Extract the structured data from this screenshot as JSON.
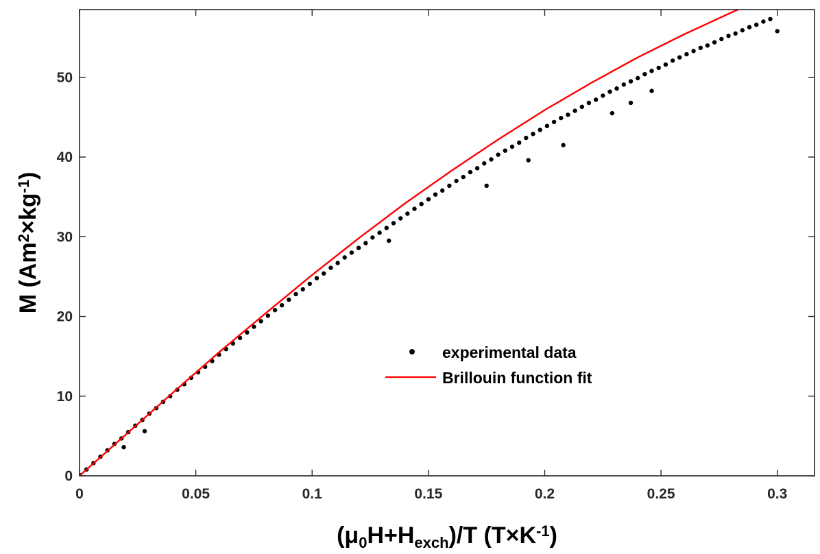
{
  "chart_data": {
    "type": "scatter",
    "title": "",
    "xlabel": {
      "parts": [
        {
          "text": "(μ",
          "style": "normal"
        },
        {
          "text": "0",
          "style": "sub"
        },
        {
          "text": "H+H",
          "style": "normal"
        },
        {
          "text": "exch",
          "style": "sub"
        },
        {
          "text": ")/T (T×K",
          "style": "normal"
        },
        {
          "text": "-1",
          "style": "sup"
        },
        {
          "text": ")",
          "style": "normal"
        }
      ]
    },
    "ylabel": {
      "parts": [
        {
          "text": "M (Am",
          "style": "normal"
        },
        {
          "text": "2",
          "style": "sup"
        },
        {
          "text": "×kg",
          "style": "normal"
        },
        {
          "text": "-1",
          "style": "sup"
        },
        {
          "text": ")",
          "style": "normal"
        }
      ]
    },
    "xlim": [
      0,
      0.316
    ],
    "ylim": [
      0,
      58.5
    ],
    "xticks": [
      0,
      0.05,
      0.1,
      0.15,
      0.2,
      0.25,
      0.3
    ],
    "xtick_labels": [
      "0",
      "0.05",
      "0.1",
      "0.15",
      "0.2",
      "0.25",
      "0.3"
    ],
    "yticks": [
      0,
      10,
      20,
      30,
      40,
      50
    ],
    "ytick_labels": [
      "0",
      "10",
      "20",
      "30",
      "40",
      "50"
    ],
    "grid": false,
    "legend_position": "center-right",
    "series": [
      {
        "name": "experimental data",
        "kind": "scatter",
        "color": "#000000",
        "x": [
          0.0,
          0.003,
          0.006,
          0.009,
          0.012,
          0.015,
          0.018,
          0.021,
          0.024,
          0.027,
          0.03,
          0.033,
          0.036,
          0.039,
          0.042,
          0.045,
          0.048,
          0.051,
          0.054,
          0.057,
          0.06,
          0.063,
          0.066,
          0.069,
          0.072,
          0.075,
          0.078,
          0.081,
          0.084,
          0.087,
          0.09,
          0.093,
          0.096,
          0.099,
          0.102,
          0.105,
          0.108,
          0.111,
          0.114,
          0.117,
          0.12,
          0.123,
          0.126,
          0.129,
          0.132,
          0.135,
          0.138,
          0.141,
          0.144,
          0.147,
          0.15,
          0.153,
          0.156,
          0.159,
          0.162,
          0.165,
          0.168,
          0.171,
          0.174,
          0.177,
          0.18,
          0.183,
          0.186,
          0.189,
          0.192,
          0.195,
          0.198,
          0.201,
          0.204,
          0.207,
          0.21,
          0.213,
          0.216,
          0.219,
          0.222,
          0.225,
          0.228,
          0.231,
          0.234,
          0.237,
          0.24,
          0.243,
          0.246,
          0.249,
          0.252,
          0.255,
          0.258,
          0.261,
          0.264,
          0.267,
          0.27,
          0.273,
          0.276,
          0.279,
          0.282,
          0.285,
          0.288,
          0.291,
          0.294,
          0.297,
          0.3,
          0.028,
          0.019,
          0.193,
          0.208,
          0.229,
          0.175,
          0.133,
          0.237,
          0.246
        ],
        "y": [
          0.1,
          0.8,
          1.6,
          2.4,
          3.2,
          4.0,
          4.7,
          5.5,
          6.3,
          7.0,
          7.8,
          8.5,
          9.3,
          10.0,
          10.8,
          11.5,
          12.3,
          13.0,
          13.7,
          14.4,
          15.2,
          15.9,
          16.6,
          17.3,
          18.0,
          18.7,
          19.4,
          20.1,
          20.8,
          21.4,
          22.1,
          22.8,
          23.4,
          24.1,
          24.8,
          25.4,
          26.1,
          26.7,
          27.4,
          28.0,
          28.6,
          29.2,
          29.9,
          30.5,
          31.1,
          31.7,
          32.3,
          32.9,
          33.5,
          34.1,
          34.7,
          35.3,
          35.8,
          36.4,
          37.0,
          37.5,
          38.1,
          38.6,
          39.2,
          39.7,
          40.3,
          40.8,
          41.3,
          41.8,
          42.4,
          42.9,
          43.4,
          43.9,
          44.4,
          44.9,
          45.3,
          45.8,
          46.3,
          46.8,
          47.2,
          47.7,
          48.2,
          48.6,
          49.1,
          49.5,
          49.9,
          50.4,
          50.8,
          51.2,
          51.6,
          52.1,
          52.5,
          52.9,
          53.3,
          53.7,
          54.0,
          54.4,
          54.8,
          55.2,
          55.5,
          55.9,
          56.3,
          56.6,
          57.0,
          57.3,
          55.8,
          5.6,
          3.6,
          39.6,
          41.5,
          45.5,
          36.4,
          29.5,
          46.8,
          48.3
        ]
      },
      {
        "name": "Brillouin function fit",
        "kind": "line",
        "color": "#ff0000",
        "x": [
          0,
          0.02,
          0.04,
          0.06,
          0.08,
          0.1,
          0.12,
          0.14,
          0.16,
          0.18,
          0.2,
          0.22,
          0.24,
          0.26,
          0.28,
          0.3,
          0.316
        ],
        "y": [
          0,
          5.2,
          10.4,
          15.5,
          20.4,
          25.2,
          29.8,
          34.2,
          38.3,
          42.2,
          45.9,
          49.3,
          52.5,
          55.4,
          58.1,
          60.6,
          62.4
        ]
      }
    ]
  }
}
